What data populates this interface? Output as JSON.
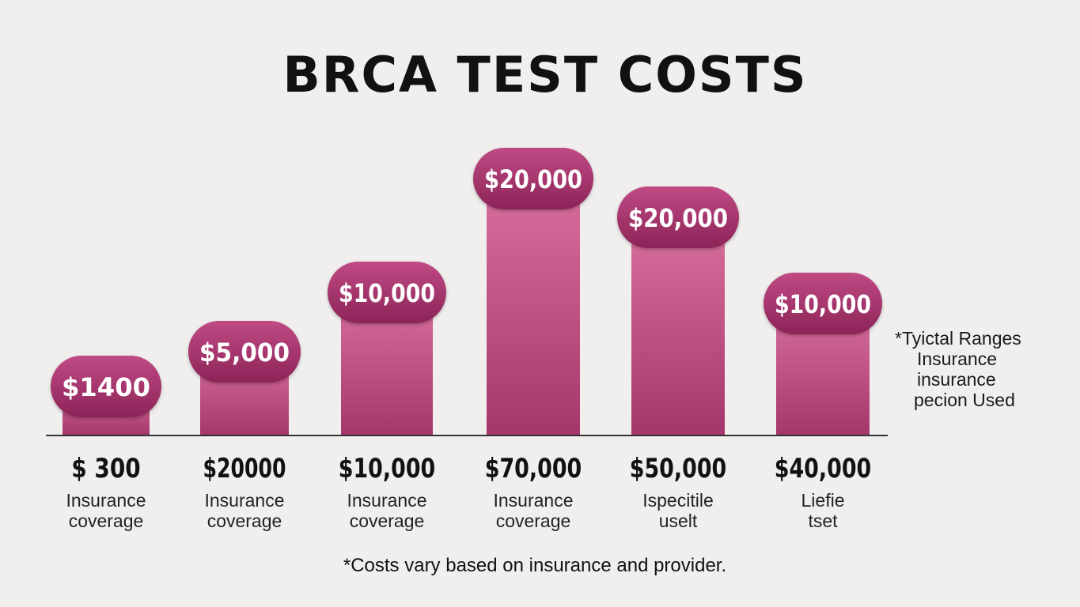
{
  "chart_data": {
    "type": "bar",
    "title": "BRCA TEST COSTS",
    "bars": [
      {
        "value": 1400,
        "value_label": "$1400",
        "cost_label": "$ 300",
        "caption_lines": [
          "Insurance",
          "coverage"
        ]
      },
      {
        "value": 5000,
        "value_label": "$5,000",
        "cost_label": "$20000",
        "caption_lines": [
          "Insurance",
          "coverage"
        ]
      },
      {
        "value": 10000,
        "value_label": "$10,000",
        "cost_label": "$10,000",
        "caption_lines": [
          "Insurance",
          "coverage"
        ]
      },
      {
        "value": 20000,
        "value_label": "$20,000",
        "cost_label": "$70,000",
        "caption_lines": [
          "Insurance",
          "coverage"
        ]
      },
      {
        "value": 20000,
        "value_label": "$20,000",
        "cost_label": "$50,000",
        "caption_lines": [
          "Ispecitile",
          "uselt"
        ]
      },
      {
        "value": 10000,
        "value_label": "$10,000",
        "cost_label": "$40,000",
        "caption_lines": [
          "Liefie",
          "tset"
        ]
      }
    ],
    "colors": {
      "bar_top": "#d9719f",
      "bar_bottom": "#a4366b",
      "pill_top": "#c04a84",
      "pill_bottom": "#8c2458"
    },
    "grid": false
  },
  "side_note": [
    "*Tyictal Ranges",
    "Insurance",
    "insurance",
    "pecion Used"
  ],
  "footnote": "*Costs vary based on insurance and provider."
}
